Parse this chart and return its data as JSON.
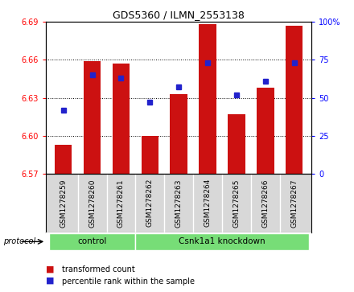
{
  "title": "GDS5360 / ILMN_2553138",
  "samples": [
    "GSM1278259",
    "GSM1278260",
    "GSM1278261",
    "GSM1278262",
    "GSM1278263",
    "GSM1278264",
    "GSM1278265",
    "GSM1278266",
    "GSM1278267"
  ],
  "transformed_count": [
    6.593,
    6.659,
    6.657,
    6.6,
    6.633,
    6.688,
    6.617,
    6.638,
    6.687
  ],
  "percentile_rank": [
    42,
    65,
    63,
    47,
    57,
    73,
    52,
    61,
    73
  ],
  "y_min": 6.57,
  "y_max": 6.69,
  "y_ticks": [
    6.57,
    6.6,
    6.63,
    6.66,
    6.69
  ],
  "y2_ticks": [
    0,
    25,
    50,
    75,
    100
  ],
  "bar_color": "#cc1111",
  "dot_color": "#2222cc",
  "protocol_groups": [
    {
      "label": "control",
      "start": 0,
      "end": 3
    },
    {
      "label": "Csnk1a1 knockdown",
      "start": 3,
      "end": 9
    }
  ],
  "protocol_color": "#77dd77",
  "legend_items": [
    {
      "label": "transformed count",
      "color": "#cc1111"
    },
    {
      "label": "percentile rank within the sample",
      "color": "#2222cc"
    }
  ],
  "bar_bottom": 6.57
}
